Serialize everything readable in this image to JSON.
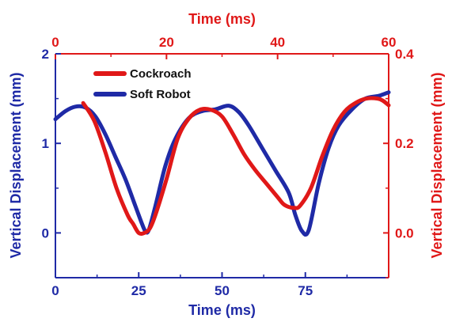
{
  "chart_data": {
    "type": "line",
    "xlabel_bottom": "Time (ms)",
    "xlabel_top": "Time (ms)",
    "ylabel_left": "Vertical Displacement (mm)",
    "ylabel_right": "Vertical Displacement (mm)",
    "xlim_bottom": [
      0,
      100
    ],
    "xlim_top": [
      0,
      60
    ],
    "ylim_left": [
      -0.5,
      2
    ],
    "ylim_right": [
      -0.1,
      0.4
    ],
    "xticks_bottom": [
      "0",
      "25",
      "50",
      "75"
    ],
    "xticks_top": [
      "0",
      "20",
      "40",
      "60"
    ],
    "yticks_left": [
      "0",
      "1",
      "2"
    ],
    "yticks_right": [
      "0.0",
      "0.2",
      "0.4"
    ],
    "grid": false,
    "legend_position": "top-left",
    "colors": {
      "cockroach": "#e01818",
      "soft_robot": "#1f2aa6"
    },
    "series": [
      {
        "name": "Soft Robot",
        "axis": "left-bottom",
        "x": [
          0,
          3,
          6,
          9,
          12,
          15,
          18,
          21,
          24,
          26,
          27,
          28,
          30,
          33,
          36,
          40,
          44,
          48,
          52,
          55,
          58,
          62,
          66,
          70,
          72,
          74,
          76,
          79,
          82,
          85,
          89,
          93,
          97,
          100
        ],
        "y": [
          1.27,
          1.36,
          1.41,
          1.4,
          1.3,
          1.1,
          0.85,
          0.6,
          0.3,
          0.1,
          0.02,
          0.03,
          0.3,
          0.75,
          1.05,
          1.28,
          1.36,
          1.38,
          1.42,
          1.35,
          1.2,
          0.95,
          0.7,
          0.45,
          0.2,
          0.02,
          0.03,
          0.55,
          0.95,
          1.2,
          1.38,
          1.5,
          1.53,
          1.57
        ]
      },
      {
        "name": "Cockroach",
        "axis": "right-top",
        "x": [
          5,
          7,
          9,
          11,
          13,
          14,
          15,
          16,
          17,
          18,
          20,
          22,
          24,
          26,
          28,
          30,
          32,
          34,
          36,
          38,
          40,
          41,
          42,
          43,
          44,
          46,
          48,
          50,
          52,
          54,
          56,
          58,
          59,
          60
        ],
        "y": [
          0.29,
          0.25,
          0.18,
          0.1,
          0.04,
          0.02,
          0.0,
          0.0,
          0.01,
          0.04,
          0.12,
          0.21,
          0.255,
          0.275,
          0.275,
          0.26,
          0.22,
          0.175,
          0.14,
          0.11,
          0.08,
          0.065,
          0.058,
          0.056,
          0.06,
          0.1,
          0.17,
          0.23,
          0.27,
          0.29,
          0.3,
          0.3,
          0.295,
          0.285
        ]
      }
    ]
  }
}
